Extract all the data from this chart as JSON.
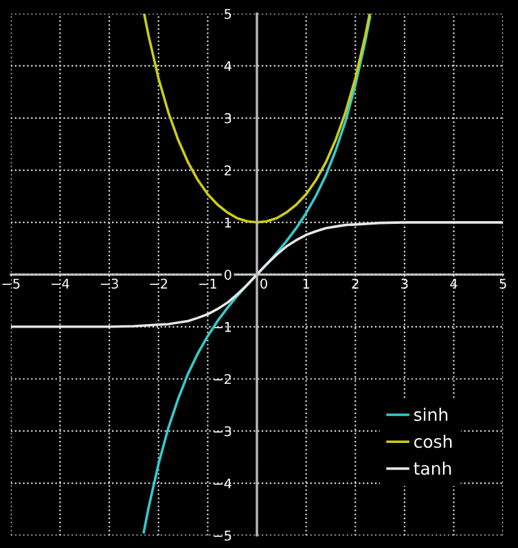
{
  "chart_data": {
    "type": "line",
    "xlim": [
      -5,
      5
    ],
    "ylim": [
      -5,
      5
    ],
    "xticks": [
      -5,
      -4,
      -3,
      -2,
      -1,
      0,
      1,
      2,
      3,
      4,
      5
    ],
    "yticks": [
      -5,
      -4,
      -3,
      -2,
      -1,
      0,
      1,
      2,
      3,
      4,
      5
    ],
    "grid": true,
    "legend": "bottom right",
    "line_style": "solid",
    "marker": "none",
    "series": [
      {
        "name": "sinh",
        "color": "#33cccc",
        "x": [
          -2.3,
          -2.2,
          -2.0,
          -1.8,
          -1.6,
          -1.4,
          -1.2,
          -1.0,
          -0.8,
          -0.6,
          -0.4,
          -0.2,
          0,
          0.2,
          0.4,
          0.6,
          0.8,
          1.0,
          1.2,
          1.4,
          1.6,
          1.8,
          2.0,
          2.2,
          2.3
        ],
        "values": [
          -4.94,
          -4.46,
          -3.63,
          -2.94,
          -2.38,
          -1.9,
          -1.51,
          -1.18,
          -0.89,
          -0.64,
          -0.41,
          -0.2,
          0,
          0.2,
          0.41,
          0.64,
          0.89,
          1.18,
          1.51,
          1.9,
          2.38,
          2.94,
          3.63,
          4.46,
          4.94
        ]
      },
      {
        "name": "cosh",
        "color": "#cccc1a",
        "x": [
          -2.29,
          -2.2,
          -2.0,
          -1.8,
          -1.6,
          -1.4,
          -1.2,
          -1.0,
          -0.8,
          -0.6,
          -0.4,
          -0.2,
          0,
          0.2,
          0.4,
          0.6,
          0.8,
          1.0,
          1.2,
          1.4,
          1.6,
          1.8,
          2.0,
          2.2,
          2.29
        ],
        "values": [
          4.99,
          4.57,
          3.76,
          3.11,
          2.58,
          2.15,
          1.81,
          1.54,
          1.34,
          1.19,
          1.08,
          1.02,
          1,
          1.02,
          1.08,
          1.19,
          1.34,
          1.54,
          1.81,
          2.15,
          2.58,
          3.11,
          3.76,
          4.57,
          4.99
        ]
      },
      {
        "name": "tanh",
        "color": "#e6e6e6",
        "x": [
          -5,
          -4,
          -3,
          -2.5,
          -2,
          -1.8,
          -1.6,
          -1.4,
          -1.2,
          -1.0,
          -0.8,
          -0.6,
          -0.4,
          -0.2,
          0,
          0.2,
          0.4,
          0.6,
          0.8,
          1.0,
          1.2,
          1.4,
          1.6,
          1.8,
          2,
          2.5,
          3,
          4,
          5
        ],
        "values": [
          -1,
          -1,
          -1,
          -0.99,
          -0.96,
          -0.95,
          -0.92,
          -0.89,
          -0.83,
          -0.76,
          -0.66,
          -0.54,
          -0.38,
          -0.2,
          0,
          0.2,
          0.38,
          0.54,
          0.66,
          0.76,
          0.83,
          0.89,
          0.92,
          0.95,
          0.96,
          0.99,
          1,
          1,
          1
        ]
      }
    ]
  }
}
